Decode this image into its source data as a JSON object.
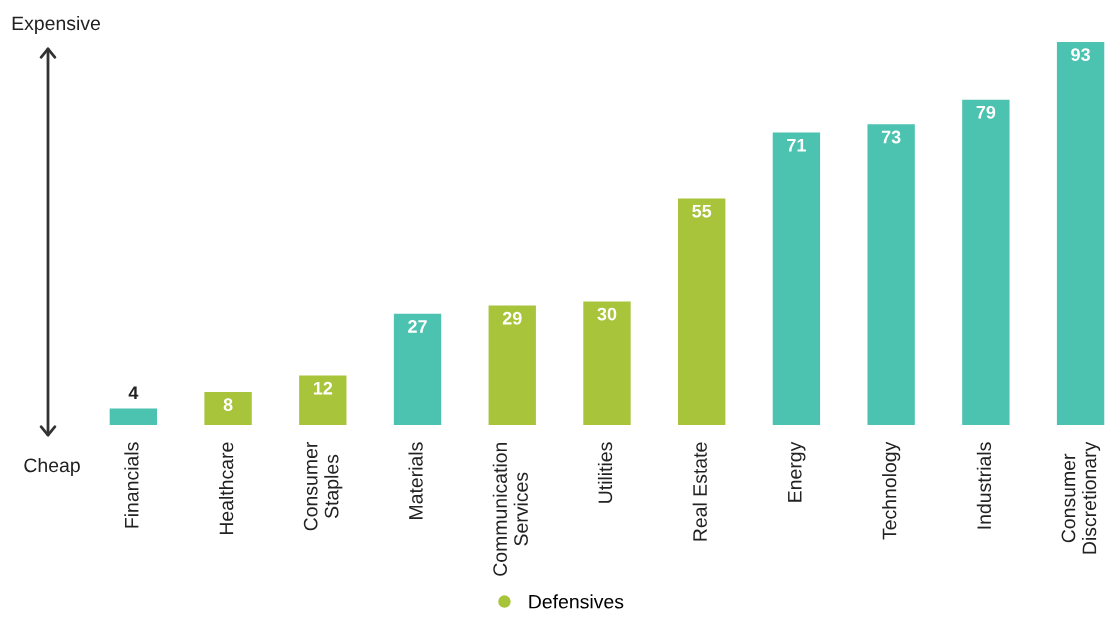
{
  "chart_data": {
    "type": "bar",
    "categories": [
      "Financials",
      "Healthcare",
      "Consumer\nStaples",
      "Materials",
      "Communication\nServices",
      "Utilities",
      "Real Estate",
      "Energy",
      "Technology",
      "Industrials",
      "Consumer\nDiscretionary"
    ],
    "series": [
      {
        "name": "Defensives",
        "color": "#a8c43a",
        "values": [
          null,
          8,
          12,
          null,
          29,
          30,
          55,
          null,
          null,
          null,
          null
        ]
      },
      {
        "color": "#4cc2b0",
        "values": [
          4,
          null,
          null,
          27,
          null,
          null,
          null,
          71,
          73,
          79,
          93
        ]
      }
    ],
    "data_labels": true,
    "legend": "bottom",
    "grid": false,
    "annotations": [
      "Expensive",
      "Cheap"
    ]
  }
}
